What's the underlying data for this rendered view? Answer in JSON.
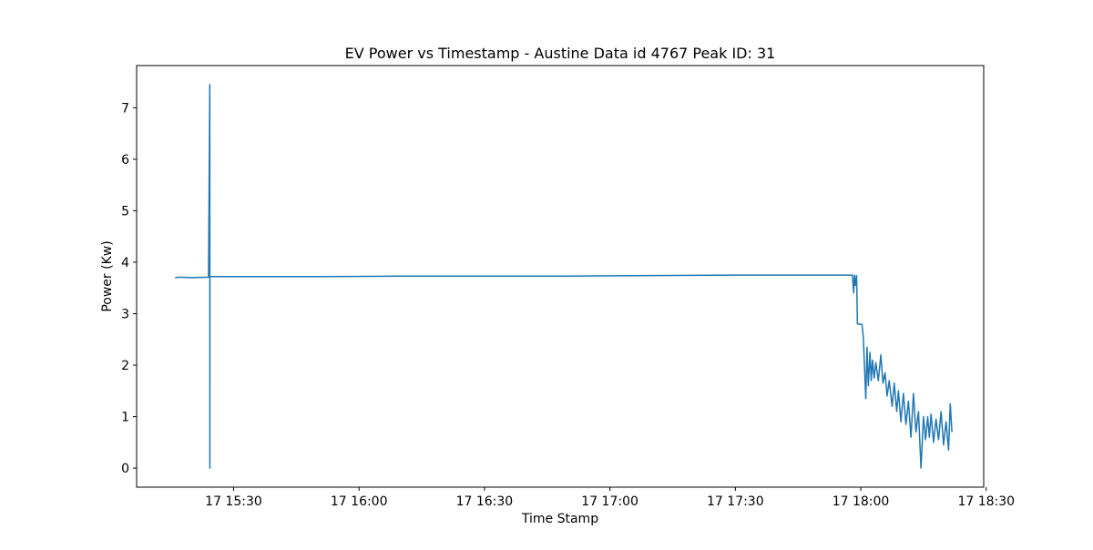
{
  "chart_data": {
    "type": "line",
    "title": "EV Power vs Timestamp - Austine Data id 4767 Peak ID: 31",
    "xlabel": "Time Stamp",
    "ylabel": "Power (Kw)",
    "x_tick_labels": [
      "17 15:30",
      "17 16:00",
      "17 16:30",
      "17 17:00",
      "17 17:30",
      "17 18:00",
      "17 18:30"
    ],
    "x_tick_minutes": [
      930,
      960,
      990,
      1020,
      1050,
      1080,
      1110
    ],
    "y_ticks": [
      0,
      1,
      2,
      3,
      4,
      5,
      6,
      7
    ],
    "xlim_minutes": [
      906.8,
      1109.4
    ],
    "ylim": [
      -0.37,
      7.82
    ],
    "grid": false,
    "line_color": "#1f77b4",
    "series": [
      {
        "name": "",
        "x_minutes": [
          916.0,
          917.0,
          920.0,
          924.0,
          924.3,
          924.32,
          924.34,
          924.36,
          924.38,
          925.0,
          935.0,
          950.0,
          970.0,
          990.0,
          1010.0,
          1030.0,
          1050.0,
          1070.0,
          1078.0,
          1078.3,
          1078.5,
          1078.7,
          1079.0,
          1079.2,
          1079.4,
          1080.3,
          1080.6,
          1081.2,
          1081.5,
          1081.8,
          1082.2,
          1082.5,
          1082.8,
          1083.2,
          1083.6,
          1084.2,
          1084.8,
          1085.3,
          1085.8,
          1086.3,
          1086.8,
          1087.5,
          1088.0,
          1088.6,
          1089.0,
          1089.6,
          1090.2,
          1090.8,
          1091.4,
          1092.0,
          1092.6,
          1093.2,
          1093.8,
          1094.4,
          1095.0,
          1095.5,
          1096.0,
          1096.4,
          1096.8,
          1097.4,
          1098.0,
          1098.6,
          1099.2,
          1099.8,
          1100.4,
          1101.0,
          1101.4,
          1101.8
        ],
        "y": [
          3.7,
          3.71,
          3.7,
          3.71,
          7.45,
          0.0,
          3.72,
          3.71,
          3.72,
          3.72,
          3.72,
          3.72,
          3.73,
          3.73,
          3.73,
          3.74,
          3.75,
          3.75,
          3.75,
          3.4,
          3.75,
          3.55,
          3.74,
          2.8,
          2.8,
          2.79,
          2.55,
          1.35,
          2.35,
          1.6,
          2.25,
          1.7,
          2.1,
          1.75,
          2.05,
          1.7,
          2.2,
          1.65,
          1.85,
          1.4,
          1.7,
          1.2,
          1.65,
          1.1,
          1.5,
          0.9,
          1.45,
          0.85,
          1.3,
          0.6,
          1.45,
          0.7,
          1.1,
          0.0,
          1.0,
          0.55,
          1.0,
          0.6,
          1.05,
          0.5,
          0.95,
          0.55,
          1.1,
          0.45,
          0.9,
          0.35,
          1.25,
          0.7
        ]
      }
    ]
  }
}
